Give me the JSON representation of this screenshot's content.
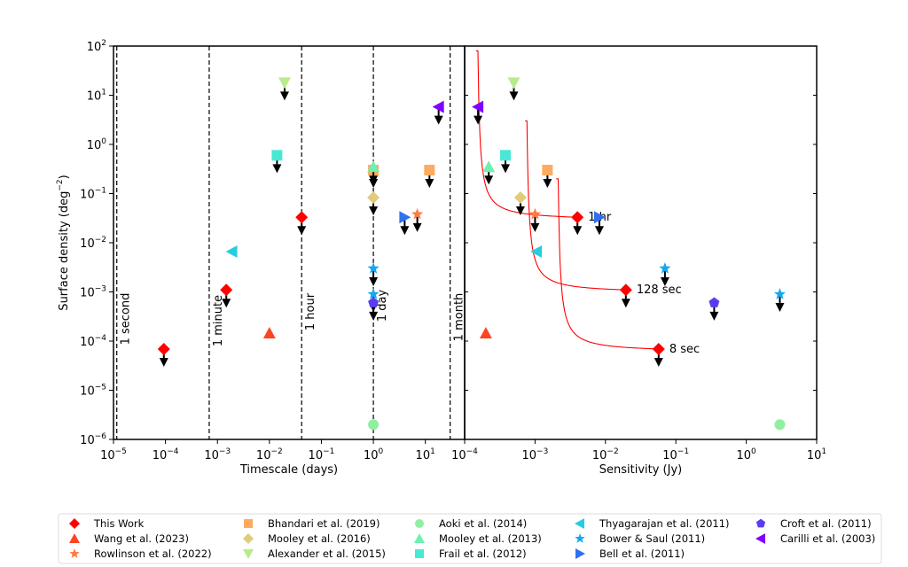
{
  "chart_data": [
    {
      "type": "scatter",
      "panel": "left",
      "xlabel": "Timescale (days)",
      "ylabel": "Surface density (deg^-2)",
      "xscale": "log",
      "yscale": "log",
      "xlim": [
        1e-05,
        57
      ],
      "ylim": [
        1e-06,
        100
      ],
      "xticks": [
        1e-05,
        0.0001,
        0.001,
        0.01,
        0.1,
        1,
        10
      ],
      "xtick_labels": [
        "10^-5",
        "10^-4",
        "10^-3",
        "10^-2",
        "10^-1",
        "10^0",
        "10^1"
      ],
      "yticks": [
        1e-06,
        1e-05,
        0.0001,
        0.001,
        0.01,
        0.1,
        1,
        10,
        100
      ],
      "ytick_labels": [
        "10^-6",
        "10^-5",
        "10^-4",
        "10^-3",
        "10^-2",
        "10^-1",
        "10^0",
        "10^1",
        "10^2"
      ],
      "vertical_lines": [
        {
          "label": "1 second",
          "x": 1.157e-05
        },
        {
          "label": "1 minute",
          "x": 0.000694
        },
        {
          "label": "1 hour",
          "x": 0.0417
        },
        {
          "label": "1 day",
          "x": 1
        },
        {
          "label": "1 month",
          "x": 30
        }
      ],
      "series": [
        {
          "name": "This Work",
          "points": [
            [
              9.3e-05,
              6.9e-05,
              true
            ],
            [
              0.00148,
              0.0011,
              true
            ],
            [
              0.0417,
              0.033,
              true
            ]
          ]
        },
        {
          "name": "Wang et al. (2023)",
          "points": [
            [
              0.01,
              0.000145,
              false
            ]
          ]
        },
        {
          "name": "Rowlinson et al. (2022)",
          "points": [
            [
              7,
              0.038,
              true
            ]
          ]
        },
        {
          "name": "Bhandari et al. (2019)",
          "points": [
            [
              1,
              0.3,
              true
            ],
            [
              12,
              0.3,
              true
            ]
          ]
        },
        {
          "name": "Mooley et al. (2016)",
          "points": [
            [
              1,
              0.083,
              true
            ]
          ]
        },
        {
          "name": "Alexander et al. (2015)",
          "points": [
            [
              0.0196,
              18,
              true
            ]
          ]
        },
        {
          "name": "Aoki et al. (2014)",
          "points": [
            [
              1,
              2e-06,
              false
            ]
          ]
        },
        {
          "name": "Mooley et al. (2013)",
          "points": [
            [
              1,
              0.35,
              true
            ]
          ]
        },
        {
          "name": "Frail et al. (2012)",
          "points": [
            [
              0.014,
              0.6,
              true
            ]
          ]
        },
        {
          "name": "Thyagarajan et al. (2011)",
          "points": [
            [
              0.0019,
              0.0066,
              false
            ]
          ]
        },
        {
          "name": "Bower & Saul (2011)",
          "points": [
            [
              1,
              0.003,
              true
            ],
            [
              1,
              0.0009,
              true
            ]
          ]
        },
        {
          "name": "Bell et al. (2011)",
          "points": [
            [
              4,
              0.033,
              true
            ]
          ]
        },
        {
          "name": "Croft et al. (2011)",
          "points": [
            [
              1,
              0.0006,
              true
            ]
          ]
        },
        {
          "name": "Carilli et al. (2003)",
          "points": [
            [
              18,
              5.8,
              true
            ]
          ]
        }
      ]
    },
    {
      "type": "scatter",
      "panel": "right",
      "xlabel": "Sensitivity (Jy)",
      "ylabel": "",
      "xscale": "log",
      "yscale": "log",
      "xlim": [
        0.0001,
        10
      ],
      "ylim": [
        1e-06,
        100
      ],
      "xticks": [
        0.0001,
        0.001,
        0.01,
        0.1,
        1,
        10
      ],
      "xtick_labels": [
        "10^-4",
        "10^-3",
        "10^-2",
        "10^-1",
        "10^0",
        "10^1"
      ],
      "curves": [
        {
          "label": "1 hr",
          "asymptote_x": 0.000145,
          "end": [
            0.004,
            0.033
          ],
          "top_y": 80
        },
        {
          "label": "128 sec",
          "asymptote_x": 0.00072,
          "end": [
            0.0195,
            0.0011
          ],
          "top_y": 3
        },
        {
          "label": "8 sec",
          "asymptote_x": 0.002,
          "end": [
            0.057,
            6.9e-05
          ],
          "top_y": 0.2
        }
      ],
      "series": [
        {
          "name": "This Work",
          "points": [
            [
              0.004,
              0.033,
              true
            ],
            [
              0.0195,
              0.0011,
              true
            ],
            [
              0.057,
              6.9e-05,
              true
            ]
          ]
        },
        {
          "name": "Wang et al. (2023)",
          "points": [
            [
              0.0002,
              0.000145,
              false
            ]
          ]
        },
        {
          "name": "Rowlinson et al. (2022)",
          "points": [
            [
              0.001,
              0.038,
              true
            ]
          ]
        },
        {
          "name": "Bhandari et al. (2019)",
          "points": [
            [
              0.0015,
              0.3,
              true
            ]
          ]
        },
        {
          "name": "Mooley et al. (2016)",
          "points": [
            [
              0.00062,
              0.083,
              true
            ]
          ]
        },
        {
          "name": "Alexander et al. (2015)",
          "points": [
            [
              0.0005,
              18,
              true
            ]
          ]
        },
        {
          "name": "Aoki et al. (2014)",
          "points": [
            [
              3,
              2e-06,
              false
            ]
          ]
        },
        {
          "name": "Mooley et al. (2013)",
          "points": [
            [
              0.00022,
              0.35,
              true
            ]
          ]
        },
        {
          "name": "Frail et al. (2012)",
          "points": [
            [
              0.00038,
              0.6,
              true
            ]
          ]
        },
        {
          "name": "Thyagarajan et al. (2011)",
          "points": [
            [
              0.00105,
              0.0066,
              false
            ]
          ]
        },
        {
          "name": "Bower & Saul (2011)",
          "points": [
            [
              0.07,
              0.003,
              true
            ],
            [
              3,
              0.0009,
              true
            ]
          ]
        },
        {
          "name": "Bell et al. (2011)",
          "points": [
            [
              0.0082,
              0.033,
              true
            ]
          ]
        },
        {
          "name": "Croft et al. (2011)",
          "points": [
            [
              0.35,
              0.0006,
              true
            ]
          ]
        },
        {
          "name": "Carilli et al. (2003)",
          "points": [
            [
              0.000155,
              5.8,
              true
            ]
          ]
        }
      ]
    }
  ],
  "legend": {
    "placement": "bottom",
    "entries": [
      {
        "label": "This Work",
        "marker": "diamond",
        "color": "#ff0000"
      },
      {
        "label": "Wang et al. (2023)",
        "marker": "triangle-up",
        "color": "#ff4422"
      },
      {
        "label": "Rowlinson et al. (2022)",
        "marker": "star",
        "color": "#ff7a45"
      },
      {
        "label": "Bhandari et al. (2019)",
        "marker": "square",
        "color": "#ffaa5e"
      },
      {
        "label": "Mooley et al. (2016)",
        "marker": "diamond",
        "color": "#e0cc7a"
      },
      {
        "label": "Alexander et al. (2015)",
        "marker": "triangle-down",
        "color": "#b8ec8a"
      },
      {
        "label": "Aoki et al. (2014)",
        "marker": "circle",
        "color": "#8ff0a0"
      },
      {
        "label": "Mooley et al. (2013)",
        "marker": "triangle-up",
        "color": "#6ef0b0"
      },
      {
        "label": "Frail et al. (2012)",
        "marker": "square",
        "color": "#48e8d4"
      },
      {
        "label": "Thyagarajan et al. (2011)",
        "marker": "triangle-left",
        "color": "#25cde0"
      },
      {
        "label": "Bower & Saul (2011)",
        "marker": "star",
        "color": "#15a8f0"
      },
      {
        "label": "Bell et al. (2011)",
        "marker": "triangle-right",
        "color": "#3070f0"
      },
      {
        "label": "Croft et al. (2011)",
        "marker": "pentagon",
        "color": "#5a3cf0"
      },
      {
        "label": "Carilli et al. (2003)",
        "marker": "triangle-left",
        "color": "#8000ff"
      }
    ]
  }
}
